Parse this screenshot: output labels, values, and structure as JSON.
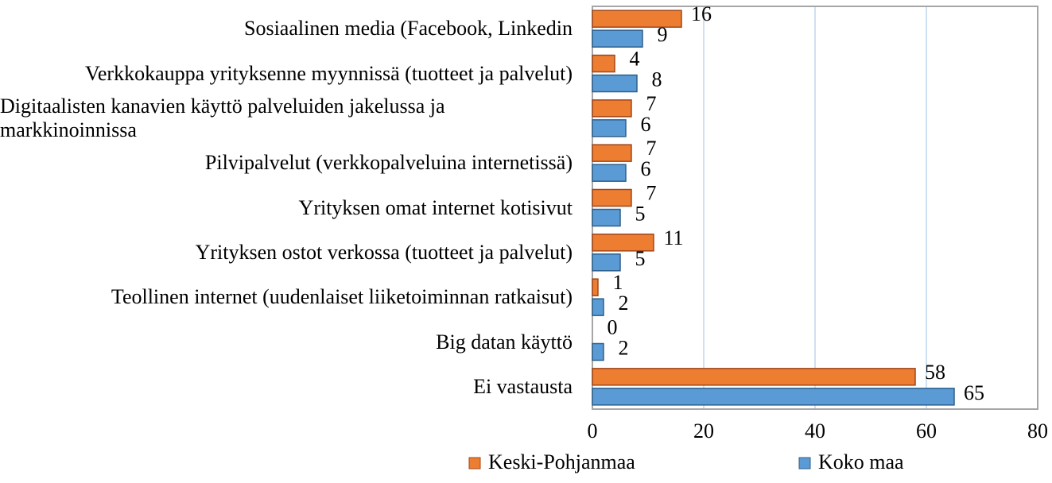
{
  "chart_data": {
    "type": "hbar",
    "categories": [
      "Sosiaalinen media (Facebook, Linkedin",
      "Verkkokauppa yrityksenne myynnissä (tuotteet ja palvelut)",
      "Digitaalisten kanavien käyttö palveluiden jakelussa ja markkinoinnissa",
      "Pilvipalvelut (verkkopalveluina internetissä)",
      "Yrityksen omat internet kotisivut",
      "Yrityksen ostot verkossa (tuotteet ja palvelut)",
      "Teollinen internet (uudenlaiset liiketoiminnan ratkaisut)",
      "Big datan käyttö",
      "Ei vastausta"
    ],
    "series": [
      {
        "name": "Keski-Pohjanmaa",
        "color": "#ed7d31",
        "values": [
          16,
          4,
          7,
          7,
          7,
          11,
          1,
          0,
          58
        ]
      },
      {
        "name": "Koko maa",
        "color": "#5b9bd5",
        "values": [
          9,
          8,
          6,
          6,
          5,
          5,
          2,
          2,
          65
        ]
      }
    ],
    "xlim": [
      0,
      80
    ],
    "xticks": [
      0,
      20,
      40,
      60,
      80
    ],
    "grid": true,
    "legend": "bottom"
  }
}
